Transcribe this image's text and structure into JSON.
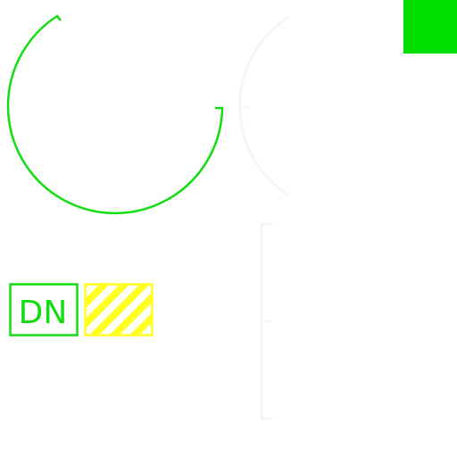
{
  "badge": {
    "text": "DN"
  },
  "colors": {
    "background": "#ffffff",
    "green": "#00e000",
    "arc_stroke": "#11dd11",
    "faint": "#f3f7f3",
    "yellow": "#ffff22"
  },
  "icons": [
    "green-arc-icon",
    "faint-arc-icon",
    "faint-bracket-icon",
    "green-square-icon",
    "dn-badge",
    "striped-yellow-swatch"
  ]
}
